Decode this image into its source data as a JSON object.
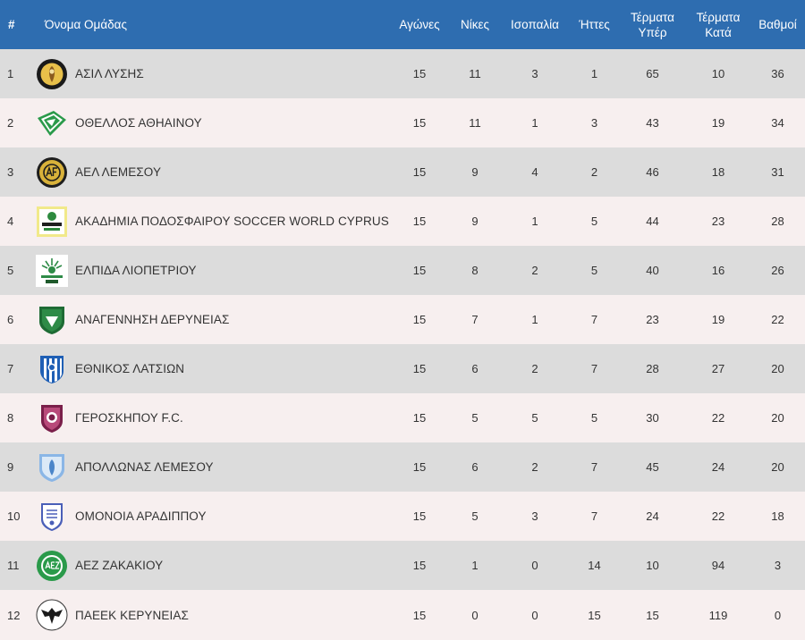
{
  "columns": {
    "pos": "#",
    "team": "Όνομα Ομάδας",
    "played": "Αγώνες",
    "wins": "Νίκες",
    "draws": "Ισοπαλία",
    "losses": "Ήττες",
    "goals_for": "Τέρματα Υπέρ",
    "goals_against": "Τέρματα Κατά",
    "points": "Βαθμοί"
  },
  "colors": {
    "header_bg": "#2e6db0",
    "row_odd": "#dcdcdc",
    "row_even": "#f7efef"
  },
  "rows": [
    {
      "pos": "1",
      "team": "ΑΣΙΛ ΛΥΣΗΣ",
      "logo": "asil-lysis-crest-icon",
      "played": "15",
      "wins": "11",
      "draws": "3",
      "losses": "1",
      "goals_for": "65",
      "goals_against": "10",
      "points": "36"
    },
    {
      "pos": "2",
      "team": "ΟΘΕΛΛΟΣ ΑΘΗΑΙΝΟΥ",
      "logo": "othellos-crest-icon",
      "played": "15",
      "wins": "11",
      "draws": "1",
      "losses": "3",
      "goals_for": "43",
      "goals_against": "19",
      "points": "34"
    },
    {
      "pos": "3",
      "team": "ΑΕΛ ΛΕΜΕΣΟΥ",
      "logo": "ael-crest-icon",
      "played": "15",
      "wins": "9",
      "draws": "4",
      "losses": "2",
      "goals_for": "46",
      "goals_against": "18",
      "points": "31"
    },
    {
      "pos": "4",
      "team": "ΑΚΑΔΗΜΙΑ ΠΟΔΟΣΦΑΙΡΟΥ SOCCER WORLD CYPRUS",
      "logo": "soccer-world-crest-icon",
      "played": "15",
      "wins": "9",
      "draws": "1",
      "losses": "5",
      "goals_for": "44",
      "goals_against": "23",
      "points": "28"
    },
    {
      "pos": "5",
      "team": "ΕΛΠΙΔΑ ΛΙΟΠΕΤΡΙΟΥ",
      "logo": "elpida-crest-icon",
      "played": "15",
      "wins": "8",
      "draws": "2",
      "losses": "5",
      "goals_for": "40",
      "goals_against": "16",
      "points": "26"
    },
    {
      "pos": "6",
      "team": "ΑΝΑΓΕΝΝΗΣΗ ΔΕΡΥΝΕΙΑΣ",
      "logo": "anagennisi-crest-icon",
      "played": "15",
      "wins": "7",
      "draws": "1",
      "losses": "7",
      "goals_for": "23",
      "goals_against": "19",
      "points": "22"
    },
    {
      "pos": "7",
      "team": "ΕΘΝΙΚΟΣ ΛΑΤΣΙΩΝ",
      "logo": "ethnikos-crest-icon",
      "played": "15",
      "wins": "6",
      "draws": "2",
      "losses": "7",
      "goals_for": "28",
      "goals_against": "27",
      "points": "20"
    },
    {
      "pos": "8",
      "team": "ΓΕΡΟΣΚΗΠΟΥ F.C.",
      "logo": "geroskipou-crest-icon",
      "played": "15",
      "wins": "5",
      "draws": "5",
      "losses": "5",
      "goals_for": "30",
      "goals_against": "22",
      "points": "20"
    },
    {
      "pos": "9",
      "team": "ΑΠΟΛΛΩΝΑΣ ΛΕΜΕΣΟΥ",
      "logo": "apollon-crest-icon",
      "played": "15",
      "wins": "6",
      "draws": "2",
      "losses": "7",
      "goals_for": "45",
      "goals_against": "24",
      "points": "20"
    },
    {
      "pos": "10",
      "team": "ΟΜΟΝΟΙΑ ΑΡΑΔΙΠΠΟΥ",
      "logo": "omonia-aradippou-crest-icon",
      "played": "15",
      "wins": "5",
      "draws": "3",
      "losses": "7",
      "goals_for": "24",
      "goals_against": "22",
      "points": "18"
    },
    {
      "pos": "11",
      "team": "ΑΕΖ ΖΑΚΑΚΙΟΥ",
      "logo": "aez-crest-icon",
      "played": "15",
      "wins": "1",
      "draws": "0",
      "losses": "14",
      "goals_for": "10",
      "goals_against": "94",
      "points": "3"
    },
    {
      "pos": "12",
      "team": "ΠΑΕΕΚ ΚΕΡΥΝΕΙΑΣ",
      "logo": "paeek-crest-icon",
      "played": "15",
      "wins": "0",
      "draws": "0",
      "losses": "15",
      "goals_for": "15",
      "goals_against": "119",
      "points": "0"
    }
  ]
}
